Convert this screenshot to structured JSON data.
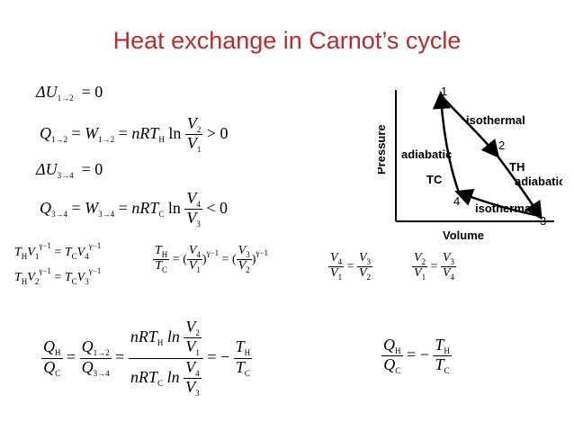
{
  "slide": {
    "title": "Heat exchange in Carnot’s cycle"
  },
  "equations": {
    "e1": "ΔU₁→₂ = 0",
    "e2_lhs": "Q₁→₂ = W₁→₂ = nRTH ln",
    "e2_num": "V₂",
    "e2_den": "V₁",
    "e2_rhs": "> 0",
    "e3": "ΔU₃→₄ = 0",
    "e4_lhs": "Q₃→₄ = W₃→₄ = nRTC ln",
    "e4_num": "V₄",
    "e4_den": "V₃",
    "e4_rhs": "< 0",
    "adiab1": "THV₁^(γ−1) = TCV₄^(γ−1)",
    "adiab2": "THV₂^(γ−1) = TCV₃^(γ−1)",
    "ratio_T_num": "TH",
    "ratio_T_den": "TC",
    "ratio_mid": "(V₄/V₁)^(γ−1) = (V₃/V₂)^(γ−1)",
    "vol_ratio1": "V₄/V₁ = V₃/V₂",
    "vol_ratio2": "V₂/V₁ = V₃/V₄",
    "final_chain": "QH/QC = Q₁→₂/Q₃→₄ = nRTH ln(V₂/V₁) / nRTC ln(V₄/V₃) = −TH/TC",
    "final_result": "QH/QC = −TH/TC"
  },
  "diagram": {
    "y_axis_label": "Pressure",
    "x_axis_label": "Volume",
    "label_isothermal_top": "isothermal",
    "label_isothermal_bottom": "isothermal",
    "label_adiabatic_left": "adiabatic",
    "label_adiabatic_right": "adiabatic",
    "label_TH": "TH",
    "label_TC": "TC",
    "points": [
      "1",
      "2",
      "3",
      "4"
    ]
  },
  "colors": {
    "title": "#b52d2d",
    "text": "#000000",
    "background": "#ffffff"
  }
}
